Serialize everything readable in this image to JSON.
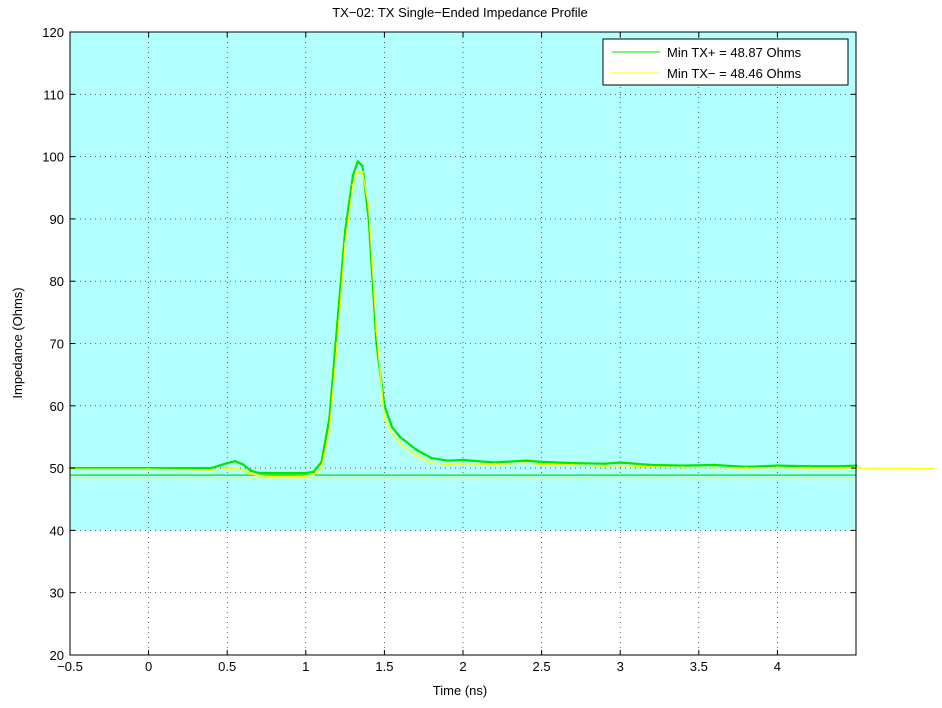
{
  "chart_data": {
    "type": "line",
    "title": "TX−02: TX Single−Ended Impedance Profile",
    "xlabel": "Time (ns)",
    "ylabel": "Impedance (Ohms)",
    "xlim": [
      -0.5,
      4.5
    ],
    "ylim": [
      20,
      120
    ],
    "xticks": [
      -0.5,
      0,
      0.5,
      1,
      1.5,
      2,
      2.5,
      3,
      3.5,
      4
    ],
    "xtick_labels": [
      "−0.5",
      "0",
      "0.5",
      "1",
      "1.5",
      "2",
      "2.5",
      "3",
      "3.5",
      "4"
    ],
    "yticks": [
      20,
      30,
      40,
      50,
      60,
      70,
      80,
      90,
      100,
      110,
      120
    ],
    "ytick_labels": [
      "20",
      "30",
      "40",
      "50",
      "60",
      "70",
      "80",
      "90",
      "100",
      "110",
      "120"
    ],
    "grid": true,
    "legend_position": "top-right",
    "pass_band": {
      "ymin": 40,
      "ymax": 120,
      "color": "#b2ffff"
    },
    "series": [
      {
        "name": "Min TX+ = 48.87 Ohms",
        "color": "#00e600",
        "min_value": 48.87,
        "x": [
          -0.5,
          0.0,
          0.4,
          0.5,
          0.55,
          0.6,
          0.65,
          0.7,
          0.8,
          0.9,
          1.0,
          1.05,
          1.1,
          1.15,
          1.2,
          1.25,
          1.3,
          1.33,
          1.36,
          1.4,
          1.45,
          1.5,
          1.55,
          1.6,
          1.7,
          1.8,
          1.9,
          2.0,
          2.2,
          2.4,
          2.5,
          2.7,
          2.9,
          3.0,
          3.2,
          3.4,
          3.6,
          3.8,
          4.0,
          4.2,
          4.4,
          4.5
        ],
        "y": [
          50.0,
          50.0,
          50.0,
          50.8,
          51.1,
          50.6,
          49.6,
          49.2,
          49.2,
          49.2,
          49.2,
          49.4,
          51.0,
          58.0,
          73.0,
          88.0,
          97.0,
          99.2,
          98.5,
          90.0,
          70.0,
          60.0,
          56.5,
          55.0,
          53.0,
          51.6,
          51.2,
          51.3,
          50.9,
          51.2,
          51.0,
          50.8,
          50.7,
          50.9,
          50.5,
          50.4,
          50.5,
          50.2,
          50.4,
          50.3,
          50.3,
          50.4
        ]
      },
      {
        "name": "Min TX− = 48.46 Ohms",
        "color": "#ffff00",
        "min_value": 48.46,
        "x": [
          -0.5,
          0.0,
          0.4,
          0.5,
          0.55,
          0.6,
          0.65,
          0.7,
          0.8,
          0.9,
          1.0,
          1.05,
          1.1,
          1.15,
          1.2,
          1.25,
          1.3,
          1.33,
          1.36,
          1.4,
          1.45,
          1.5,
          1.55,
          1.6,
          1.7,
          1.8,
          1.9,
          2.0,
          2.2,
          2.4,
          2.5,
          2.7,
          2.9,
          3.0,
          3.2,
          3.4,
          3.6,
          3.8,
          4.0,
          4.2,
          4.4,
          4.5,
          5.0
        ],
        "y": [
          49.8,
          49.8,
          49.7,
          49.9,
          50.0,
          49.7,
          49.1,
          48.8,
          48.6,
          48.6,
          48.7,
          48.9,
          50.0,
          56.0,
          70.0,
          86.0,
          95.5,
          97.5,
          97.5,
          92.0,
          72.0,
          58.0,
          55.5,
          54.0,
          52.0,
          50.8,
          50.6,
          50.7,
          50.6,
          50.8,
          50.6,
          50.5,
          50.3,
          50.4,
          50.2,
          50.1,
          50.1,
          50.0,
          50.1,
          50.0,
          50.0,
          50.0,
          49.9
        ]
      }
    ]
  }
}
